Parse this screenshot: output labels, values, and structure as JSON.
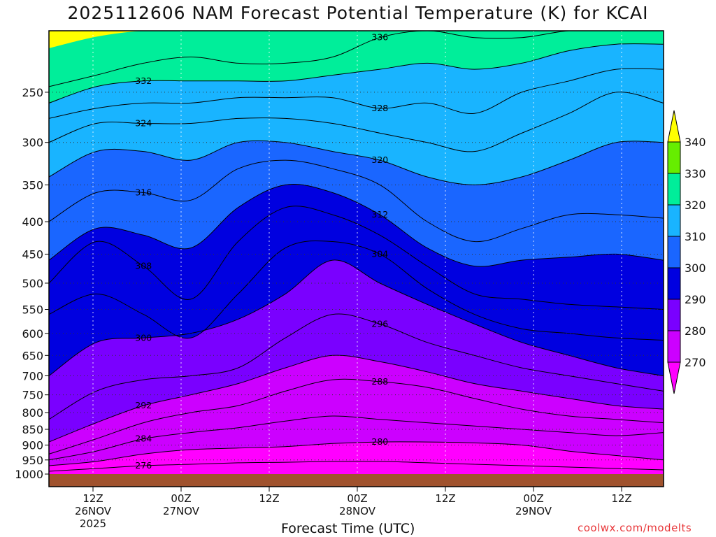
{
  "header": {
    "title": "2025112606 NAM Forecast Potential Temperature (K) for KCAI"
  },
  "footer": {
    "xaxis_label": "Forecast Time (UTC)",
    "credit": "coolwx.com/modelts"
  },
  "colors": {
    "band_270": "#ff00ff",
    "band_280": "#cc00ff",
    "band_290": "#7a00ff",
    "band_300": "#0000e0",
    "band_310": "#1a66ff",
    "band_320": "#19b4ff",
    "band_330": "#00ee9a",
    "band_340": "#66ee00",
    "band_above": "#ffff00",
    "ground": "#a0522d"
  },
  "chart_data": {
    "type": "heatmap",
    "title": "2025112606 NAM Forecast Potential Temperature (K) for KCAI",
    "xlabel": "Forecast Time (UTC)",
    "ylabel": "",
    "y_axis": {
      "scale": "log-pressure, inverted",
      "ticks": [
        250,
        300,
        350,
        400,
        450,
        500,
        550,
        600,
        650,
        700,
        750,
        800,
        850,
        900,
        950,
        1000
      ]
    },
    "x_axis": {
      "ticks": [
        {
          "line1": "12Z",
          "line2": "26NOV",
          "line3": "2025"
        },
        {
          "line1": "00Z",
          "line2": "27NOV",
          "line3": ""
        },
        {
          "line1": "12Z",
          "line2": "",
          "line3": ""
        },
        {
          "line1": "00Z",
          "line2": "28NOV",
          "line3": ""
        },
        {
          "line1": "12Z",
          "line2": "",
          "line3": ""
        },
        {
          "line1": "00Z",
          "line2": "29NOV",
          "line3": ""
        },
        {
          "line1": "12Z",
          "line2": "",
          "line3": ""
        }
      ]
    },
    "colorbar": {
      "labels": [
        "270",
        "280",
        "290",
        "300",
        "310",
        "320",
        "330",
        "340"
      ],
      "extend": "both"
    },
    "contour_interval_K": 4,
    "isentropes": [
      {
        "theta": 276,
        "label": "276",
        "p": [
          990,
          980,
          970,
          965,
          960,
          958,
          955,
          955,
          960,
          965,
          970,
          975,
          980,
          985
        ]
      },
      {
        "theta": 280,
        "label": "280",
        "p": [
          970,
          955,
          930,
          915,
          910,
          905,
          895,
          890,
          890,
          893,
          900,
          920,
          935,
          950
        ]
      },
      {
        "theta": 284,
        "label": "284",
        "p": [
          950,
          920,
          880,
          860,
          845,
          825,
          810,
          820,
          830,
          840,
          850,
          860,
          870,
          860
        ]
      },
      {
        "theta": 288,
        "label": "288",
        "p": [
          930,
          880,
          830,
          800,
          780,
          740,
          710,
          715,
          730,
          760,
          790,
          810,
          820,
          830
        ]
      },
      {
        "theta": 292,
        "label": "292",
        "p": [
          890,
          830,
          780,
          750,
          720,
          680,
          650,
          665,
          690,
          720,
          740,
          760,
          780,
          790
        ]
      },
      {
        "theta": 296,
        "label": "296",
        "p": [
          820,
          740,
          710,
          700,
          680,
          610,
          560,
          580,
          620,
          650,
          680,
          700,
          720,
          740
        ]
      },
      {
        "theta": 300,
        "label": "300",
        "p": [
          700,
          620,
          610,
          600,
          570,
          520,
          460,
          500,
          540,
          580,
          620,
          650,
          680,
          700
        ]
      },
      {
        "theta": 304,
        "label": "304",
        "p": [
          560,
          520,
          560,
          610,
          520,
          440,
          430,
          450,
          510,
          560,
          590,
          600,
          610,
          615
        ]
      },
      {
        "theta": 308,
        "label": "308",
        "p": [
          500,
          430,
          470,
          530,
          430,
          380,
          390,
          420,
          470,
          520,
          530,
          540,
          545,
          550
        ]
      },
      {
        "theta": 312,
        "label": "312",
        "p": [
          460,
          410,
          420,
          440,
          380,
          350,
          360,
          390,
          440,
          470,
          460,
          455,
          450,
          460
        ]
      },
      {
        "theta": 316,
        "label": "316",
        "p": [
          400,
          360,
          360,
          370,
          330,
          320,
          330,
          350,
          400,
          430,
          410,
          390,
          390,
          395
        ]
      },
      {
        "theta": 320,
        "label": "320",
        "p": [
          340,
          310,
          310,
          320,
          300,
          300,
          310,
          320,
          340,
          350,
          340,
          320,
          300,
          300
        ]
      },
      {
        "theta": 324,
        "label": "324",
        "p": [
          300,
          280,
          280,
          280,
          275,
          275,
          280,
          290,
          300,
          310,
          290,
          270,
          250,
          260
        ]
      },
      {
        "theta": 328,
        "label": "328",
        "p": [
          275,
          265,
          260,
          260,
          255,
          255,
          255,
          265,
          260,
          270,
          250,
          240,
          230,
          230
        ]
      },
      {
        "theta": 332,
        "label": "332",
        "p": [
          260,
          245,
          240,
          240,
          240,
          240,
          235,
          230,
          225,
          230,
          225,
          215,
          210,
          210
        ]
      },
      {
        "theta": 336,
        "label": "336",
        "p": [
          245,
          235,
          225,
          220,
          225,
          225,
          220,
          205,
          200,
          205,
          205,
          200,
          200,
          200
        ]
      }
    ]
  }
}
